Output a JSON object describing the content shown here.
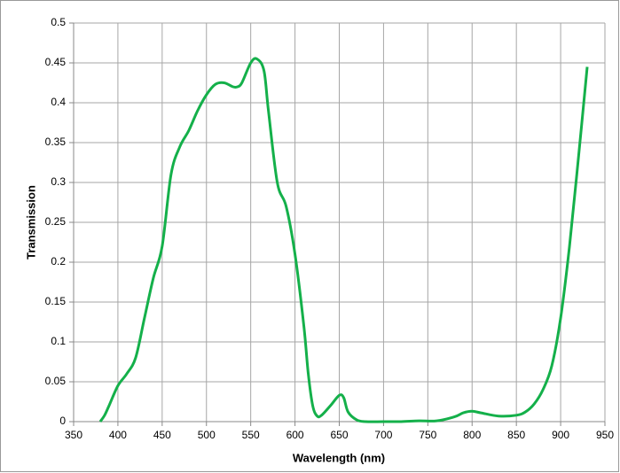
{
  "chart_data": {
    "type": "line",
    "x_label": "Wavelength (nm)",
    "y_label": "Transmission",
    "x": [
      380,
      385,
      390,
      400,
      410,
      420,
      430,
      440,
      450,
      460,
      470,
      480,
      490,
      500,
      510,
      520,
      530,
      535,
      540,
      550,
      557,
      565,
      570,
      580,
      590,
      600,
      610,
      615,
      620,
      625,
      630,
      640,
      650,
      655,
      660,
      670,
      680,
      700,
      720,
      740,
      760,
      780,
      790,
      800,
      810,
      830,
      850,
      860,
      870,
      880,
      890,
      900,
      910,
      920,
      930
    ],
    "series": [
      {
        "name": "Transmission",
        "color": "#14b04a",
        "values": [
          0,
          0.008,
          0.02,
          0.045,
          0.06,
          0.08,
          0.13,
          0.18,
          0.22,
          0.31,
          0.345,
          0.365,
          0.39,
          0.41,
          0.423,
          0.425,
          0.42,
          0.42,
          0.425,
          0.45,
          0.455,
          0.44,
          0.39,
          0.3,
          0.27,
          0.21,
          0.12,
          0.06,
          0.02,
          0.007,
          0.008,
          0.02,
          0.033,
          0.03,
          0.012,
          0.002,
          0,
          0,
          0,
          0.001,
          0.001,
          0.006,
          0.011,
          0.013,
          0.011,
          0.007,
          0.008,
          0.012,
          0.022,
          0.04,
          0.07,
          0.13,
          0.22,
          0.33,
          0.445
        ]
      }
    ],
    "xlim": [
      350,
      950
    ],
    "xticks": [
      350,
      400,
      450,
      500,
      550,
      600,
      650,
      700,
      750,
      800,
      850,
      900,
      950
    ],
    "ylim": [
      0,
      0.5
    ],
    "yticks": [
      0,
      0.05,
      0.1,
      0.15,
      0.2,
      0.25,
      0.3,
      0.35,
      0.4,
      0.45,
      0.5
    ],
    "grid": true
  }
}
